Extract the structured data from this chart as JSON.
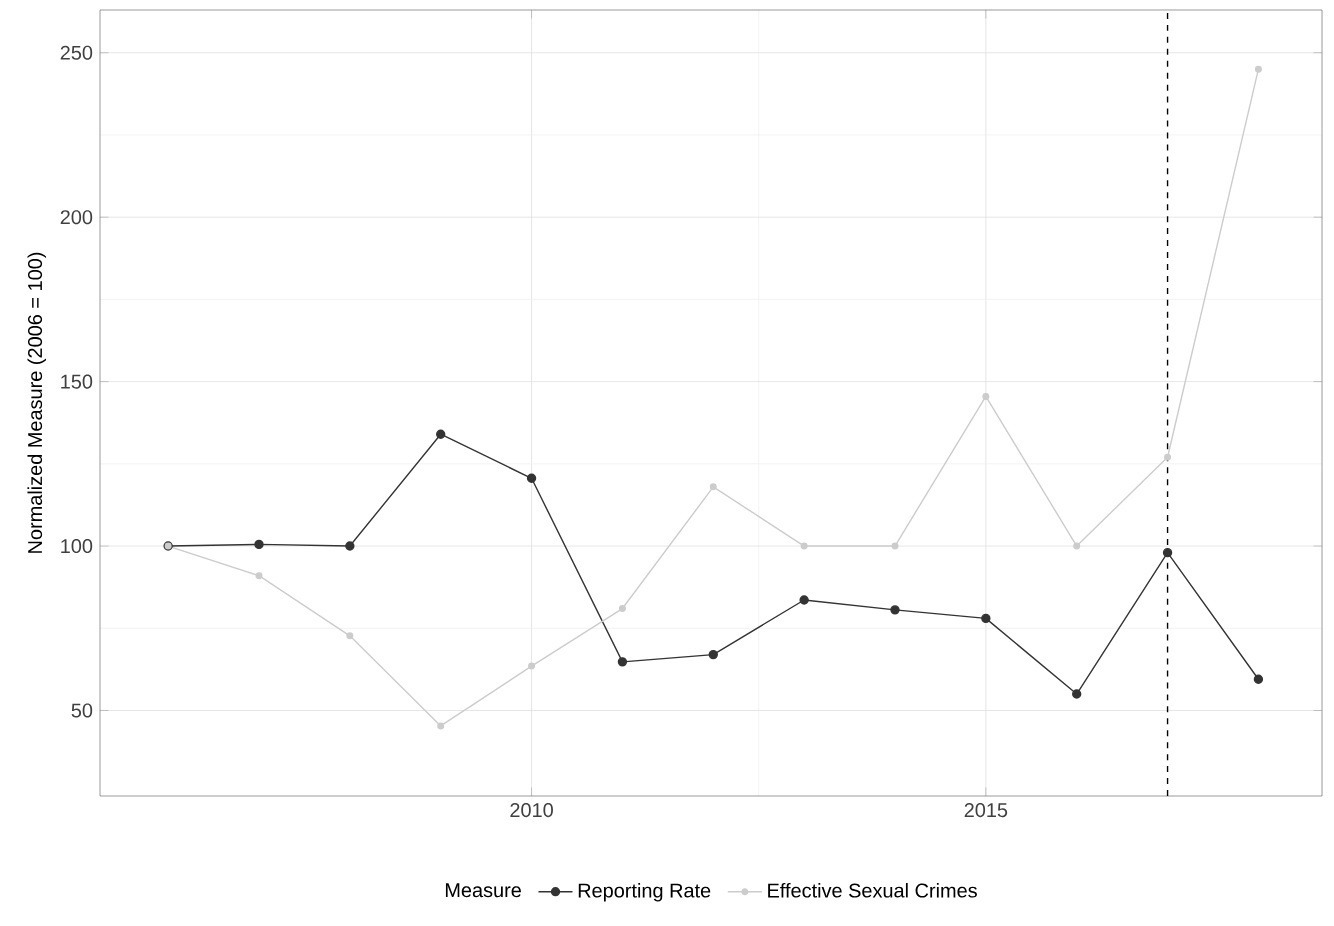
{
  "chart_data": {
    "type": "line",
    "ylabel": "Normalized Measure (2006 = 100)",
    "legend_title": "Measure",
    "x": [
      2006,
      2007,
      2008,
      2009,
      2010,
      2011,
      2012,
      2013,
      2014,
      2015,
      2016,
      2017,
      2018
    ],
    "series": [
      {
        "name": "Reporting Rate",
        "color": "#333333",
        "values": [
          100,
          100.5,
          100,
          134,
          120.6,
          64.8,
          67,
          83.6,
          80.6,
          78,
          55,
          98,
          59.5
        ]
      },
      {
        "name": "Effective Sexual Crimes",
        "color": "#cccccc",
        "values": [
          100,
          91,
          72.7,
          45.3,
          63.5,
          81,
          118,
          100,
          100,
          145.5,
          100,
          127,
          245
        ]
      }
    ],
    "xlim": [
      2005.25,
      2018.7
    ],
    "ylim": [
      24,
      263
    ],
    "xticks": [
      2010,
      2015
    ],
    "yticks": [
      50,
      100,
      150,
      200,
      250
    ],
    "ref_lines": [
      {
        "axis": "x",
        "value": 2017,
        "color": "#000000",
        "line_style": "dashed"
      }
    ],
    "grid": true,
    "legend": "bottom",
    "marker": "circle",
    "line_style": "solid"
  }
}
